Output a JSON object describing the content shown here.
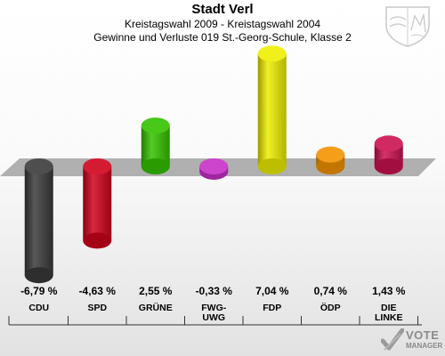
{
  "header": {
    "title": "Stadt Verl",
    "subtitle": "Kreistagswahl 2009 - Kreistagswahl 2004",
    "subtitle2": "Gewinne und Verluste 019 St.-Georg-Schule, Klasse 2"
  },
  "brand": {
    "vote": "VOTE",
    "manager": "MANAGER"
  },
  "chart_data": {
    "type": "bar",
    "title": "Stadt Verl",
    "subtitle": "Kreistagswahl 2009 - Kreistagswahl 2004 / Gewinne und Verluste 019 St.-Georg-Schule, Klasse 2",
    "categories": [
      "CDU",
      "SPD",
      "GRÜNE",
      "FWG-UWG",
      "FDP",
      "ÖDP",
      "DIE LINKE"
    ],
    "category_lines": [
      [
        "CDU"
      ],
      [
        "SPD"
      ],
      [
        "GRÜNE"
      ],
      [
        "FWG-",
        "UWG"
      ],
      [
        "FDP"
      ],
      [
        "ÖDP"
      ],
      [
        "DIE",
        "LINKE"
      ]
    ],
    "values": [
      -6.79,
      -4.63,
      2.55,
      -0.33,
      7.04,
      0.74,
      1.43
    ],
    "value_labels": [
      "-6,79 %",
      "-4,63 %",
      "2,55 %",
      "-0,33 %",
      "7,04 %",
      "0,74 %",
      "1,43 %"
    ],
    "colors": [
      "#3a3a3a",
      "#d0021b",
      "#35c200",
      "#c630c6",
      "#eeee00",
      "#f39300",
      "#cc1150"
    ],
    "unit": "%",
    "xlabel": "",
    "ylabel": "",
    "ylim": [
      -9.0,
      9.0
    ],
    "grid": false,
    "legend": "none"
  }
}
